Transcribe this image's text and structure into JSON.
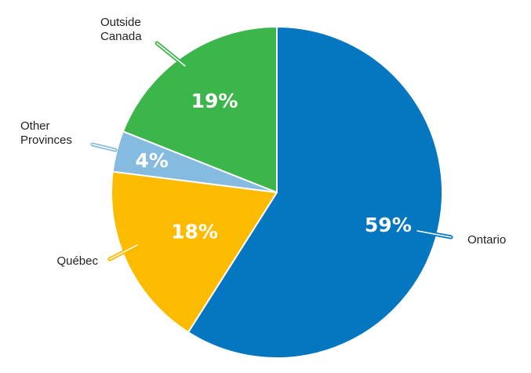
{
  "chart_data": {
    "type": "pie",
    "title": "",
    "slices": [
      {
        "label": "Ontario",
        "value": 59,
        "value_label": "59%",
        "color": "#0577c1"
      },
      {
        "label": "Québec",
        "value": 18,
        "value_label": "18%",
        "color": "#fdbb00"
      },
      {
        "label": "Other Provinces",
        "value": 4,
        "value_label": "4%",
        "color": "#86bbe0"
      },
      {
        "label": "Outside Canada",
        "value": 19,
        "value_label": "19%",
        "color": "#3cb54a"
      }
    ],
    "start_angle_deg": 0,
    "direction": "clockwise",
    "slice_border_color": "#ffffff"
  }
}
